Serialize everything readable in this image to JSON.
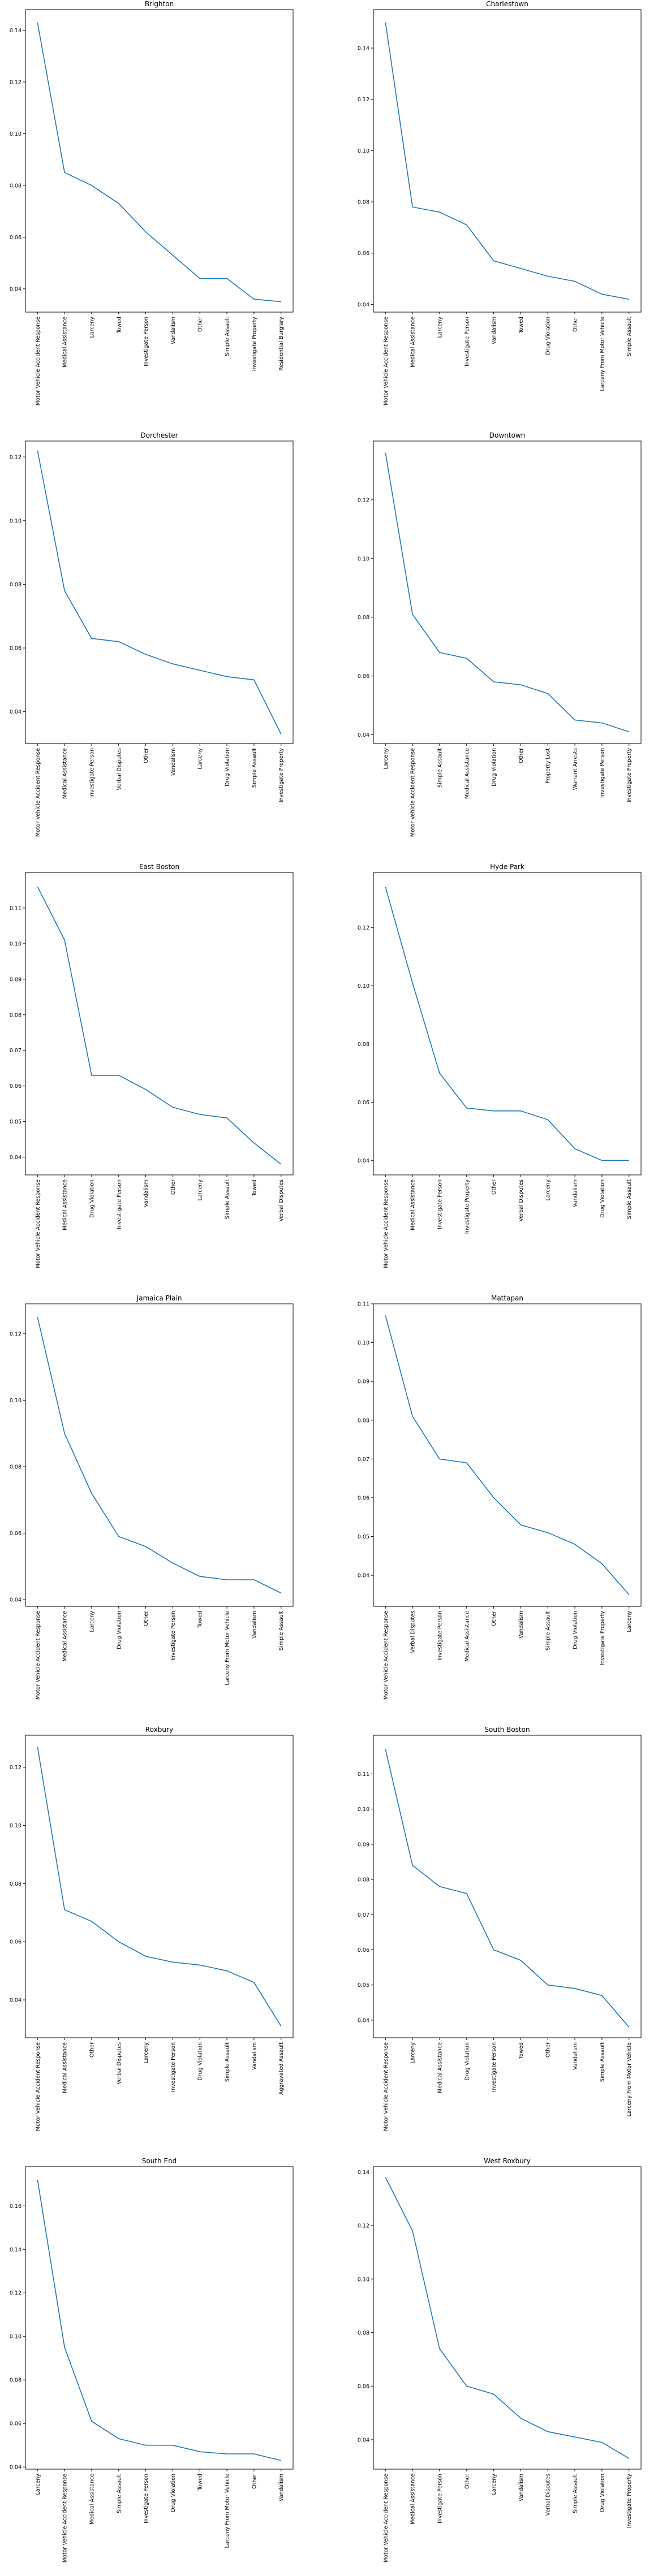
{
  "chart_data": [
    {
      "type": "line",
      "title": "Brighton",
      "categories": [
        "Motor Vehicle Accident Response",
        "Medical Assistance",
        "Larceny",
        "Towed",
        "Investigate Person",
        "Vandalism",
        "Other",
        "Simple Assault",
        "Investigate Property",
        "Residential Burglary"
      ],
      "values": [
        0.143,
        0.085,
        0.08,
        0.073,
        0.062,
        0.053,
        0.044,
        0.044,
        0.036,
        0.035
      ],
      "ylim": [
        0.031,
        0.148
      ],
      "yticks": [
        0.04,
        0.06,
        0.08,
        0.1,
        0.12,
        0.14
      ]
    },
    {
      "type": "line",
      "title": "Charlestown",
      "categories": [
        "Motor Vehicle Accident Response",
        "Medical Assistance",
        "Larceny",
        "Investigate Person",
        "Vandalism",
        "Towed",
        "Drug Violation",
        "Other",
        "Larceny From Motor Vehicle",
        "Simple Assault"
      ],
      "values": [
        0.15,
        0.078,
        0.076,
        0.071,
        0.057,
        0.054,
        0.051,
        0.049,
        0.044,
        0.042
      ],
      "ylim": [
        0.037,
        0.155
      ],
      "yticks": [
        0.04,
        0.06,
        0.08,
        0.1,
        0.12,
        0.14
      ]
    },
    {
      "type": "line",
      "title": "Dorchester",
      "categories": [
        "Motor Vehicle Accident Response",
        "Medical Assistance",
        "Investigate Person",
        "Verbal Disputes",
        "Other",
        "Vandalism",
        "Larceny",
        "Drug Violation",
        "Simple Assault",
        "Investigate Property"
      ],
      "values": [
        0.122,
        0.078,
        0.063,
        0.062,
        0.058,
        0.055,
        0.053,
        0.051,
        0.05,
        0.033
      ],
      "ylim": [
        0.03,
        0.125
      ],
      "yticks": [
        0.04,
        0.06,
        0.08,
        0.1,
        0.12
      ]
    },
    {
      "type": "line",
      "title": "Downtown",
      "categories": [
        "Larceny",
        "Motor Vehicle Accident Response",
        "Simple Assault",
        "Medical Assistance",
        "Drug Violation",
        "Other",
        "Property Lost",
        "Warrant Arrests",
        "Investigate Person",
        "Investigate Property"
      ],
      "values": [
        0.136,
        0.081,
        0.068,
        0.066,
        0.058,
        0.057,
        0.054,
        0.045,
        0.044,
        0.041
      ],
      "ylim": [
        0.037,
        0.14
      ],
      "yticks": [
        0.04,
        0.06,
        0.08,
        0.1,
        0.12
      ]
    },
    {
      "type": "line",
      "title": "East Boston",
      "categories": [
        "Motor Vehicle Accident Response",
        "Medical Assistance",
        "Drug Violation",
        "Investigate Person",
        "Vandalism",
        "Other",
        "Larceny",
        "Simple Assault",
        "Towed",
        "Verbal Disputes"
      ],
      "values": [
        0.116,
        0.101,
        0.063,
        0.063,
        0.059,
        0.054,
        0.052,
        0.051,
        0.044,
        0.038
      ],
      "ylim": [
        0.035,
        0.12
      ],
      "yticks": [
        0.04,
        0.05,
        0.06,
        0.07,
        0.08,
        0.09,
        0.1,
        0.11
      ]
    },
    {
      "type": "line",
      "title": "Hyde Park",
      "categories": [
        "Motor Vehicle Accident Response",
        "Medical Assistance",
        "Investigate Person",
        "Investigate Property",
        "Other",
        "Verbal Disputes",
        "Larceny",
        "Vandalism",
        "Drug Violation",
        "Simple Assault"
      ],
      "values": [
        0.134,
        0.101,
        0.07,
        0.058,
        0.057,
        0.057,
        0.054,
        0.044,
        0.04,
        0.04
      ],
      "ylim": [
        0.035,
        0.139
      ],
      "yticks": [
        0.04,
        0.06,
        0.08,
        0.1,
        0.12
      ]
    },
    {
      "type": "line",
      "title": "Jamaica Plain",
      "categories": [
        "Motor Vehicle Accident Response",
        "Medical Assistance",
        "Larceny",
        "Drug Violation",
        "Other",
        "Investigate Person",
        "Towed",
        "Larceny From Motor Vehicle",
        "Vandalism",
        "Simple Assault"
      ],
      "values": [
        0.125,
        0.09,
        0.072,
        0.059,
        0.056,
        0.051,
        0.047,
        0.046,
        0.046,
        0.042
      ],
      "ylim": [
        0.038,
        0.129
      ],
      "yticks": [
        0.04,
        0.06,
        0.08,
        0.1,
        0.12
      ]
    },
    {
      "type": "line",
      "title": "Mattapan",
      "categories": [
        "Motor Vehicle Accident Response",
        "Verbal Disputes",
        "Investigate Person",
        "Medical Assistance",
        "Other",
        "Vandalism",
        "Simple Assault",
        "Drug Violation",
        "Investigate Property",
        "Larceny"
      ],
      "values": [
        0.107,
        0.081,
        0.07,
        0.069,
        0.06,
        0.053,
        0.051,
        0.048,
        0.043,
        0.035
      ],
      "ylim": [
        0.032,
        0.11
      ],
      "yticks": [
        0.04,
        0.05,
        0.06,
        0.07,
        0.08,
        0.09,
        0.1,
        0.11
      ]
    },
    {
      "type": "line",
      "title": "Roxbury",
      "categories": [
        "Motor Vehicle Accident Response",
        "Medical Assistance",
        "Other",
        "Verbal Disputes",
        "Larceny",
        "Investigate Person",
        "Drug Violation",
        "Simple Assault",
        "Vandalism",
        "Aggravated Assault"
      ],
      "values": [
        0.127,
        0.071,
        0.067,
        0.06,
        0.055,
        0.053,
        0.052,
        0.05,
        0.046,
        0.031
      ],
      "ylim": [
        0.027,
        0.131
      ],
      "yticks": [
        0.04,
        0.06,
        0.08,
        0.1,
        0.12
      ]
    },
    {
      "type": "line",
      "title": "South Boston",
      "categories": [
        "Motor Vehicle Accident Response",
        "Larceny",
        "Medical Assistance",
        "Drug Violation",
        "Investigate Person",
        "Towed",
        "Other",
        "Vandalism",
        "Simple Assault",
        "Larceny From Motor Vehicle"
      ],
      "values": [
        0.117,
        0.084,
        0.078,
        0.076,
        0.06,
        0.057,
        0.05,
        0.049,
        0.047,
        0.038
      ],
      "ylim": [
        0.035,
        0.121
      ],
      "yticks": [
        0.04,
        0.05,
        0.06,
        0.07,
        0.08,
        0.09,
        0.1,
        0.11
      ]
    },
    {
      "type": "line",
      "title": "South End",
      "categories": [
        "Larceny",
        "Motor Vehicle Accident Response",
        "Medical Assistance",
        "Simple Assault",
        "Investigate Person",
        "Drug Violation",
        "Towed",
        "Larceny From Motor Vehicle",
        "Other",
        "Vandalism"
      ],
      "values": [
        0.172,
        0.095,
        0.061,
        0.053,
        0.05,
        0.05,
        0.047,
        0.046,
        0.046,
        0.043
      ],
      "ylim": [
        0.039,
        0.178
      ],
      "yticks": [
        0.04,
        0.06,
        0.08,
        0.1,
        0.12,
        0.14,
        0.16
      ]
    },
    {
      "type": "line",
      "title": "West Roxbury",
      "categories": [
        "Motor Vehicle Accident Response",
        "Medical Assistance",
        "Investigate Person",
        "Other",
        "Larceny",
        "Vandalism",
        "Verbal Disputes",
        "Simple Assault",
        "Drug Violation",
        "Investigate Property"
      ],
      "values": [
        0.138,
        0.118,
        0.074,
        0.06,
        0.057,
        0.048,
        0.043,
        0.041,
        0.039,
        0.033
      ],
      "ylim": [
        0.029,
        0.142
      ],
      "yticks": [
        0.04,
        0.06,
        0.08,
        0.1,
        0.12,
        0.14
      ]
    }
  ]
}
